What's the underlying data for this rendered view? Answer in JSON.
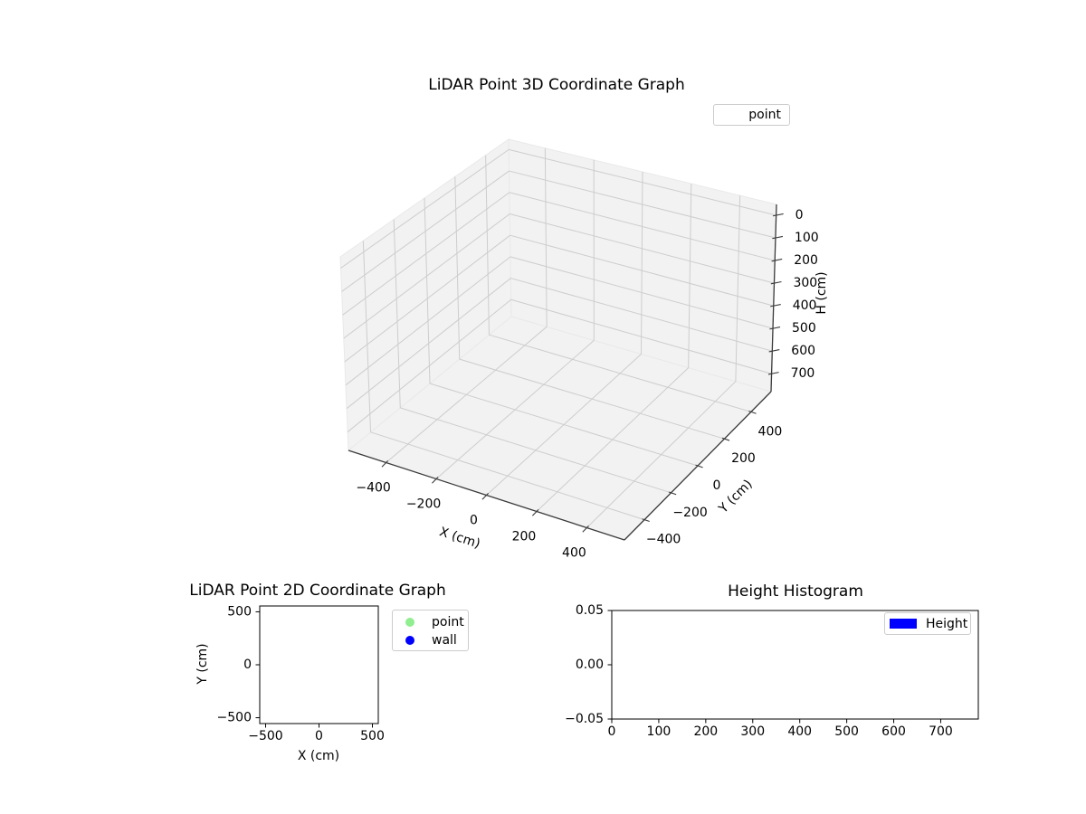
{
  "figure": {
    "background": "#ffffff"
  },
  "chart_data": [
    {
      "type": "scatter",
      "subtype": "3d",
      "title": "LiDAR Point 3D Coordinate Graph",
      "xlabel": "X (cm)",
      "ylabel": "Y (cm)",
      "zlabel": "H (cm)",
      "xlim": [
        -550,
        550
      ],
      "ylim": [
        -550,
        550
      ],
      "zlim": [
        -48,
        779
      ],
      "z_axis_inverted": true,
      "grid": true,
      "x_ticks": [
        {
          "v": -400,
          "label": "−400"
        },
        {
          "v": -200,
          "label": "−200"
        },
        {
          "v": 0,
          "label": "0"
        },
        {
          "v": 200,
          "label": "200"
        },
        {
          "v": 400,
          "label": "400"
        }
      ],
      "y_ticks": [
        {
          "v": -400,
          "label": "−400"
        },
        {
          "v": -200,
          "label": "−200"
        },
        {
          "v": 0,
          "label": "0"
        },
        {
          "v": 200,
          "label": "200"
        },
        {
          "v": 400,
          "label": "400"
        }
      ],
      "z_ticks": [
        {
          "v": 0,
          "label": "0"
        },
        {
          "v": 100,
          "label": "100"
        },
        {
          "v": 200,
          "label": "200"
        },
        {
          "v": 300,
          "label": "300"
        },
        {
          "v": 400,
          "label": "400"
        },
        {
          "v": 500,
          "label": "500"
        },
        {
          "v": 600,
          "label": "600"
        },
        {
          "v": 700,
          "label": "700"
        }
      ],
      "legend": [
        {
          "label": "point",
          "marker": "none"
        }
      ],
      "series": [
        {
          "name": "point",
          "points": []
        }
      ]
    },
    {
      "type": "scatter",
      "subtype": "2d",
      "title": "LiDAR Point 2D Coordinate Graph",
      "xlabel": "X (cm)",
      "ylabel": "Y (cm)",
      "xlim": [
        -555,
        555
      ],
      "ylim": [
        -555,
        555
      ],
      "grid": false,
      "x_ticks": [
        {
          "v": -500,
          "label": "−500"
        },
        {
          "v": 0,
          "label": "0"
        },
        {
          "v": 500,
          "label": "500"
        }
      ],
      "y_ticks": [
        {
          "v": 500,
          "label": "500"
        },
        {
          "v": 0,
          "label": "0"
        },
        {
          "v": -500,
          "label": "−500"
        }
      ],
      "legend": [
        {
          "label": "point",
          "color": "#90ee90"
        },
        {
          "label": "wall",
          "color": "#0000ff"
        }
      ],
      "series": [
        {
          "name": "point",
          "points": []
        },
        {
          "name": "wall",
          "points": []
        }
      ]
    },
    {
      "type": "bar",
      "subtype": "histogram",
      "title": "Height Histogram",
      "xlabel": "",
      "ylabel": "",
      "xlim": [
        0,
        780
      ],
      "ylim": [
        -0.05,
        0.05
      ],
      "grid": false,
      "x_ticks": [
        {
          "v": 0,
          "label": "0"
        },
        {
          "v": 100,
          "label": "100"
        },
        {
          "v": 200,
          "label": "200"
        },
        {
          "v": 300,
          "label": "300"
        },
        {
          "v": 400,
          "label": "400"
        },
        {
          "v": 500,
          "label": "500"
        },
        {
          "v": 600,
          "label": "600"
        },
        {
          "v": 700,
          "label": "700"
        }
      ],
      "y_ticks": [
        {
          "v": 0.05,
          "label": "0.05"
        },
        {
          "v": 0,
          "label": "0.00"
        },
        {
          "v": -0.05,
          "label": "−0.05"
        }
      ],
      "legend": [
        {
          "label": "Height",
          "color": "#0000ff"
        }
      ],
      "values": []
    }
  ]
}
